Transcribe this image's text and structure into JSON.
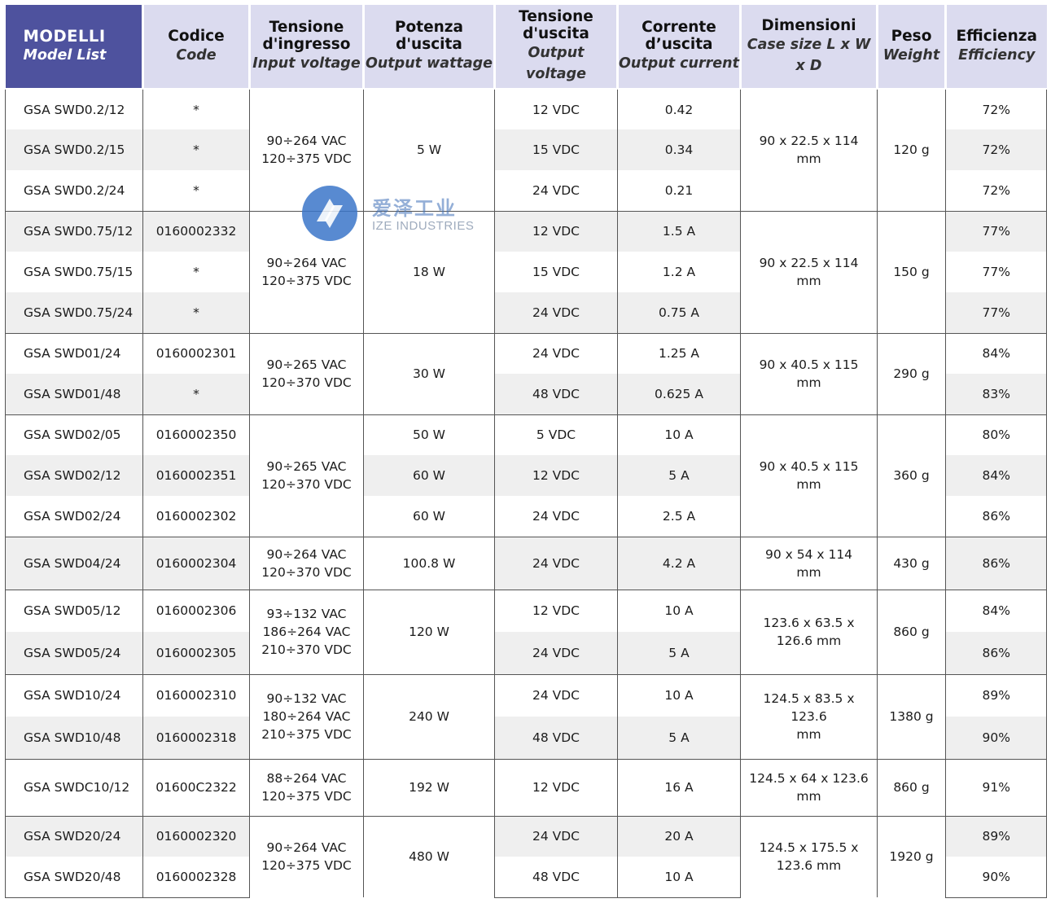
{
  "headers": [
    {
      "it": "MODELLI",
      "en": "Model List"
    },
    {
      "it": "Codice",
      "en": "Code"
    },
    {
      "it": "Tensione d'ingresso",
      "en": "Input voltage"
    },
    {
      "it": "Potenza d'uscita",
      "en": "Output wattage"
    },
    {
      "it": "Tensione d'uscita",
      "en": "Output voltage"
    },
    {
      "it": "Corrente d’uscita",
      "en": "Output current"
    },
    {
      "it": "Dimensioni",
      "en": "Case size L x W x D"
    },
    {
      "it": "Peso",
      "en": "Weight"
    },
    {
      "it": "Efficienza",
      "en": "Efficiency"
    }
  ],
  "groups": [
    {
      "input": "90÷264 VAC\n120÷375 VDC",
      "dims": "90 x 22.5 x 114\nmm",
      "weight": "120 g",
      "rows": [
        {
          "model": "GSA SWD0.2/12",
          "code": "*",
          "vout": "12 VDC",
          "iout": "0.42",
          "eff": "72%"
        },
        {
          "model": "GSA SWD0.2/15",
          "code": "*",
          "vout": "15 VDC",
          "iout": "0.34",
          "eff": "72%"
        },
        {
          "model": "GSA SWD0.2/24",
          "code": "*",
          "vout": "24 VDC",
          "iout": "0.21",
          "eff": "72%"
        }
      ],
      "power": "5 W"
    },
    {
      "input": "90÷264 VAC\n120÷375 VDC",
      "dims": "90 x 22.5 x 114\nmm",
      "weight": "150 g",
      "rows": [
        {
          "model": "GSA SWD0.75/12",
          "code": "0160002332",
          "vout": "12 VDC",
          "iout": "1.5 A",
          "eff": "77%"
        },
        {
          "model": "GSA SWD0.75/15",
          "code": "*",
          "vout": "15 VDC",
          "iout": "1.2 A",
          "eff": "77%"
        },
        {
          "model": "GSA SWD0.75/24",
          "code": "*",
          "vout": "24 VDC",
          "iout": "0.75 A",
          "eff": "77%"
        }
      ],
      "power": "18 W"
    },
    {
      "input": "90÷265 VAC\n120÷370 VDC",
      "dims": "90 x 40.5 x 115\nmm",
      "weight": "290 g",
      "rows": [
        {
          "model": "GSA SWD01/24",
          "code": "0160002301",
          "vout": "24 VDC",
          "iout": "1.25 A",
          "eff": "84%"
        },
        {
          "model": "GSA SWD01/48",
          "code": "*",
          "vout": "48 VDC",
          "iout": "0.625 A",
          "eff": "83%"
        }
      ],
      "power": "30 W"
    },
    {
      "input": "90÷265 VAC\n120÷370 VDC",
      "dims": "90 x 40.5 x 115\nmm",
      "weight": "360 g",
      "rows": [
        {
          "model": "GSA SWD02/05",
          "code": "0160002350",
          "power": "50 W",
          "vout": "5  VDC",
          "iout": "10 A",
          "eff": "80%"
        },
        {
          "model": "GSA SWD02/12",
          "code": "0160002351",
          "power": "60 W",
          "vout": "12 VDC",
          "iout": "5 A",
          "eff": "84%"
        },
        {
          "model": "GSA SWD02/24",
          "code": "0160002302",
          "power": "60 W",
          "vout": "24 VDC",
          "iout": "2.5 A",
          "eff": "86%"
        }
      ]
    },
    {
      "input": "90÷264 VAC\n120÷370 VDC",
      "dims": "90 x 54 x 114\nmm",
      "weight": "430 g",
      "rows": [
        {
          "model": "GSA SWD04/24",
          "code": "0160002304",
          "vout": "24 VDC",
          "iout": "4.2 A",
          "eff": "86%"
        }
      ],
      "power": "100.8 W"
    },
    {
      "input": "93÷132 VAC\n186÷264 VAC\n210÷370 VDC",
      "dims": "123.6 x 63.5 x\n126.6 mm",
      "weight": "860 g",
      "rows": [
        {
          "model": "GSA SWD05/12",
          "code": "0160002306",
          "vout": "12 VDC",
          "iout": "10 A",
          "eff": "84%"
        },
        {
          "model": "GSA SWD05/24",
          "code": "0160002305",
          "vout": "24 VDC",
          "iout": "5 A",
          "eff": "86%"
        }
      ],
      "power": "120 W"
    },
    {
      "input": "90÷132 VAC\n180÷264 VAC\n210÷375 VDC",
      "dims": "124.5 x 83.5 x\n123.6\nmm",
      "weight": "1380 g",
      "rows": [
        {
          "model": "GSA SWD10/24",
          "code": "0160002310",
          "vout": "24 VDC",
          "iout": "10 A",
          "eff": "89%"
        },
        {
          "model": "GSA SWD10/48",
          "code": "0160002318",
          "vout": "48 VDC",
          "iout": "5 A",
          "eff": "90%"
        }
      ],
      "power": "240 W"
    },
    {
      "input": "88÷264 VAC\n120÷375 VDC",
      "dims": "124.5 x 64 x 123.6\nmm",
      "weight": "860 g",
      "rows": [
        {
          "model": "GSA SWDC10/12",
          "code": "01600C2322",
          "vout": "12 VDC",
          "iout": "16 A",
          "eff": "91%"
        }
      ],
      "power": "192 W"
    },
    {
      "input": "90÷264 VAC\n120÷375 VDC",
      "dims": "124.5 x 175.5 x\n123.6 mm",
      "weight": "1920 g",
      "rows": [
        {
          "model": "GSA SWD20/24",
          "code": "0160002320",
          "vout": "24 VDC",
          "iout": "20 A",
          "eff": "89%"
        },
        {
          "model": "GSA SWD20/48",
          "code": "0160002328",
          "vout": "48 VDC",
          "iout": "10 A",
          "eff": "90%"
        }
      ],
      "power": "480 W"
    }
  ],
  "watermark": {
    "cn": "爱泽工业",
    "en": "IZE INDUSTRIES"
  },
  "colors": {
    "header_accent": "#4e529e",
    "header_bg": "#dbdbef",
    "row_shade": "#efefef",
    "watermark_blue": "#3b76c9"
  }
}
